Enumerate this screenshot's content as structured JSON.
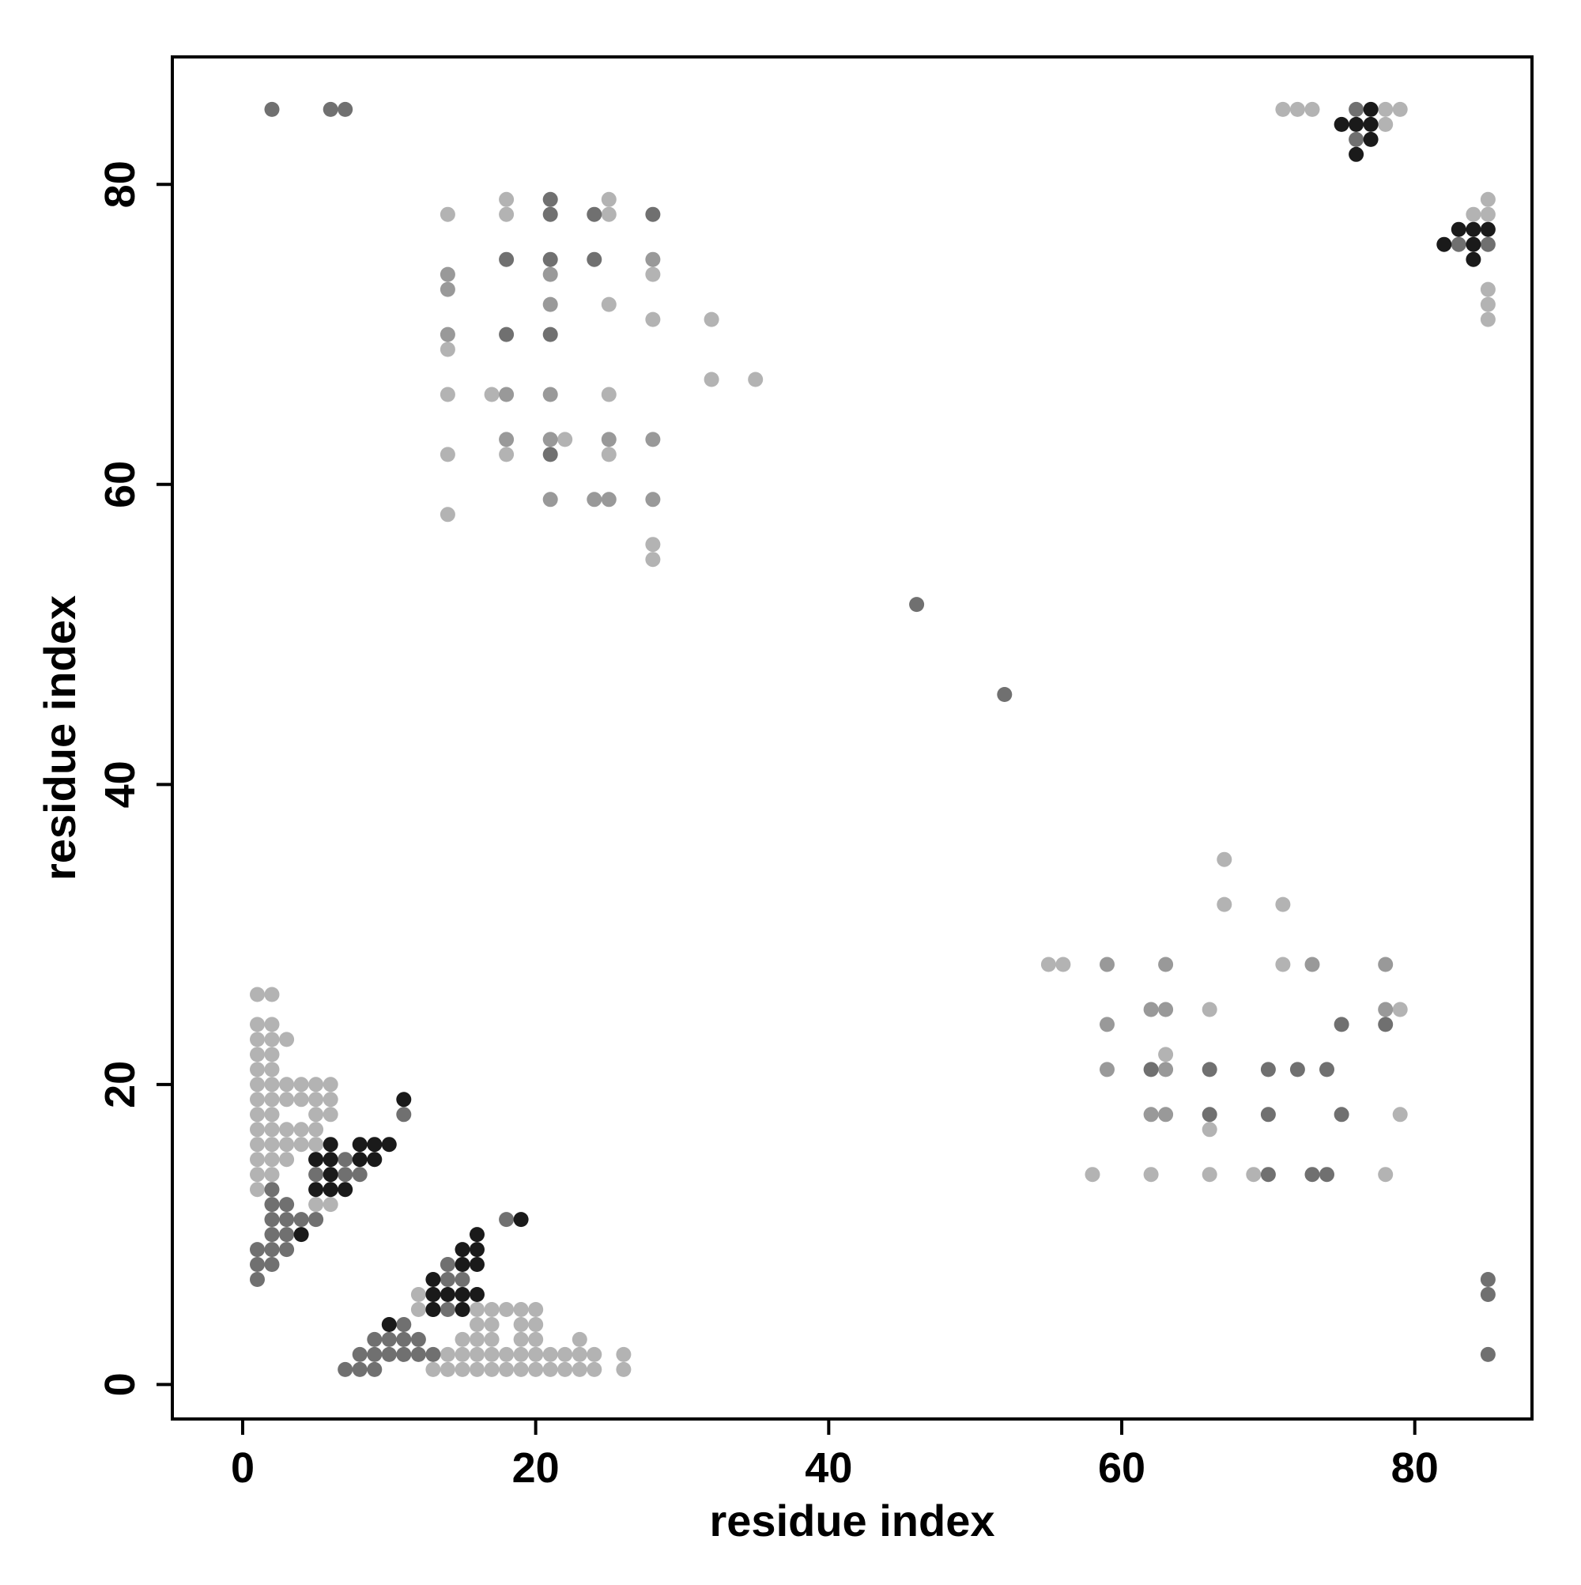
{
  "chart_data": {
    "type": "scatter",
    "title": "",
    "xlabel": "residue index",
    "ylabel": "residue index",
    "xlim": [
      -4.8,
      88
    ],
    "ylim": [
      -2.3,
      88.5
    ],
    "xticks": [
      0,
      20,
      40,
      60,
      80
    ],
    "yticks": [
      0,
      20,
      40,
      60,
      80
    ],
    "grid": false,
    "legend": "none",
    "colors": {
      "light": "#b3b3b3",
      "medium_light": "#999999",
      "medium": "#707070",
      "dark": "#1a1a1a"
    },
    "series": [
      {
        "level": "light",
        "color": "#b3b3b3",
        "points": [
          [
            1,
            26
          ],
          [
            2,
            26
          ],
          [
            1,
            24
          ],
          [
            2,
            24
          ],
          [
            1,
            23
          ],
          [
            2,
            23
          ],
          [
            3,
            23
          ],
          [
            1,
            22
          ],
          [
            2,
            22
          ],
          [
            1,
            21
          ],
          [
            2,
            21
          ],
          [
            1,
            20
          ],
          [
            2,
            20
          ],
          [
            3,
            20
          ],
          [
            4,
            20
          ],
          [
            5,
            20
          ],
          [
            6,
            20
          ],
          [
            1,
            19
          ],
          [
            2,
            19
          ],
          [
            3,
            19
          ],
          [
            4,
            19
          ],
          [
            5,
            19
          ],
          [
            6,
            19
          ],
          [
            1,
            18
          ],
          [
            2,
            18
          ],
          [
            5,
            18
          ],
          [
            6,
            18
          ],
          [
            1,
            17
          ],
          [
            2,
            17
          ],
          [
            3,
            17
          ],
          [
            4,
            17
          ],
          [
            5,
            17
          ],
          [
            1,
            16
          ],
          [
            2,
            16
          ],
          [
            3,
            16
          ],
          [
            4,
            16
          ],
          [
            5,
            16
          ],
          [
            1,
            15
          ],
          [
            2,
            15
          ],
          [
            3,
            15
          ],
          [
            1,
            14
          ],
          [
            2,
            14
          ],
          [
            1,
            13
          ],
          [
            5,
            12
          ],
          [
            6,
            12
          ],
          [
            5,
            11
          ],
          [
            12,
            6
          ],
          [
            13,
            6
          ],
          [
            12,
            5
          ],
          [
            13,
            5
          ],
          [
            16,
            5
          ],
          [
            17,
            5
          ],
          [
            18,
            5
          ],
          [
            19,
            5
          ],
          [
            20,
            5
          ],
          [
            16,
            4
          ],
          [
            17,
            4
          ],
          [
            19,
            4
          ],
          [
            20,
            4
          ],
          [
            15,
            3
          ],
          [
            16,
            3
          ],
          [
            17,
            3
          ],
          [
            19,
            3
          ],
          [
            20,
            3
          ],
          [
            23,
            3
          ],
          [
            14,
            2
          ],
          [
            15,
            2
          ],
          [
            16,
            2
          ],
          [
            17,
            2
          ],
          [
            18,
            2
          ],
          [
            19,
            2
          ],
          [
            20,
            2
          ],
          [
            21,
            2
          ],
          [
            22,
            2
          ],
          [
            23,
            2
          ],
          [
            24,
            2
          ],
          [
            26,
            2
          ],
          [
            13,
            1
          ],
          [
            14,
            1
          ],
          [
            15,
            1
          ],
          [
            16,
            1
          ],
          [
            17,
            1
          ],
          [
            18,
            1
          ],
          [
            19,
            1
          ],
          [
            20,
            1
          ],
          [
            21,
            1
          ],
          [
            22,
            1
          ],
          [
            23,
            1
          ],
          [
            24,
            1
          ],
          [
            26,
            1
          ],
          [
            14,
            78
          ],
          [
            18,
            79
          ],
          [
            18,
            78
          ],
          [
            25,
            79
          ],
          [
            25,
            78
          ],
          [
            25,
            72
          ],
          [
            28,
            74
          ],
          [
            28,
            71
          ],
          [
            32,
            71
          ],
          [
            32,
            67
          ],
          [
            35,
            67
          ],
          [
            14,
            69
          ],
          [
            14,
            66
          ],
          [
            17,
            66
          ],
          [
            25,
            66
          ],
          [
            22,
            63
          ],
          [
            14,
            62
          ],
          [
            18,
            62
          ],
          [
            25,
            62
          ],
          [
            14,
            58
          ],
          [
            28,
            56
          ],
          [
            28,
            55
          ],
          [
            71,
            85
          ],
          [
            72,
            85
          ],
          [
            73,
            85
          ],
          [
            78,
            85
          ],
          [
            79,
            85
          ],
          [
            78,
            84
          ],
          [
            85,
            79
          ],
          [
            84,
            78
          ],
          [
            85,
            78
          ],
          [
            85,
            73
          ],
          [
            85,
            72
          ],
          [
            85,
            71
          ],
          [
            67,
            35
          ],
          [
            67,
            32
          ],
          [
            71,
            32
          ],
          [
            55,
            28
          ],
          [
            56,
            28
          ],
          [
            71,
            28
          ],
          [
            66,
            25
          ],
          [
            79,
            25
          ],
          [
            63,
            22
          ],
          [
            66,
            17
          ],
          [
            79,
            18
          ],
          [
            58,
            14
          ],
          [
            62,
            14
          ],
          [
            66,
            14
          ],
          [
            69,
            14
          ],
          [
            78,
            14
          ]
        ]
      },
      {
        "level": "medium_light",
        "color": "#999999",
        "points": [
          [
            59,
            28
          ],
          [
            63,
            28
          ],
          [
            73,
            28
          ],
          [
            78,
            28
          ],
          [
            62,
            25
          ],
          [
            63,
            25
          ],
          [
            78,
            25
          ],
          [
            59,
            24
          ],
          [
            59,
            21
          ],
          [
            63,
            21
          ],
          [
            62,
            18
          ],
          [
            63,
            18
          ],
          [
            18,
            63
          ],
          [
            21,
            63
          ],
          [
            25,
            63
          ],
          [
            28,
            63
          ],
          [
            28,
            59
          ],
          [
            21,
            59
          ],
          [
            24,
            59
          ],
          [
            25,
            59
          ],
          [
            14,
            70
          ],
          [
            18,
            66
          ],
          [
            21,
            66
          ],
          [
            14,
            74
          ],
          [
            14,
            73
          ],
          [
            21,
            74
          ],
          [
            21,
            72
          ],
          [
            28,
            75
          ]
        ]
      },
      {
        "level": "medium",
        "color": "#707070",
        "points": [
          [
            2,
            85
          ],
          [
            6,
            85
          ],
          [
            7,
            85
          ],
          [
            76,
            85
          ],
          [
            76,
            83
          ],
          [
            83,
            76
          ],
          [
            85,
            76
          ],
          [
            21,
            79
          ],
          [
            21,
            78
          ],
          [
            24,
            78
          ],
          [
            28,
            78
          ],
          [
            18,
            75
          ],
          [
            21,
            75
          ],
          [
            24,
            75
          ],
          [
            18,
            70
          ],
          [
            21,
            70
          ],
          [
            21,
            62
          ],
          [
            46,
            52
          ],
          [
            52,
            46
          ],
          [
            75,
            24
          ],
          [
            78,
            24
          ],
          [
            62,
            21
          ],
          [
            66,
            21
          ],
          [
            70,
            21
          ],
          [
            72,
            21
          ],
          [
            74,
            21
          ],
          [
            66,
            18
          ],
          [
            70,
            18
          ],
          [
            75,
            18
          ],
          [
            73,
            14
          ],
          [
            74,
            14
          ],
          [
            70,
            14
          ],
          [
            85,
            7
          ],
          [
            85,
            6
          ],
          [
            85,
            2
          ],
          [
            11,
            18
          ],
          [
            18,
            11
          ],
          [
            2,
            13
          ],
          [
            2,
            12
          ],
          [
            3,
            12
          ],
          [
            2,
            11
          ],
          [
            3,
            11
          ],
          [
            4,
            11
          ],
          [
            5,
            11
          ],
          [
            2,
            10
          ],
          [
            3,
            10
          ],
          [
            1,
            9
          ],
          [
            2,
            9
          ],
          [
            3,
            9
          ],
          [
            1,
            8
          ],
          [
            2,
            8
          ],
          [
            1,
            7
          ],
          [
            5,
            15
          ],
          [
            5,
            14
          ],
          [
            6,
            14
          ],
          [
            7,
            14
          ],
          [
            8,
            14
          ],
          [
            7,
            15
          ],
          [
            8,
            2
          ],
          [
            9,
            2
          ],
          [
            10,
            2
          ],
          [
            11,
            2
          ],
          [
            12,
            2
          ],
          [
            13,
            2
          ],
          [
            9,
            3
          ],
          [
            10,
            3
          ],
          [
            11,
            3
          ],
          [
            12,
            3
          ],
          [
            11,
            4
          ],
          [
            7,
            1
          ],
          [
            8,
            1
          ],
          [
            9,
            1
          ],
          [
            14,
            8
          ],
          [
            14,
            7
          ],
          [
            15,
            7
          ],
          [
            13,
            6
          ],
          [
            13,
            5
          ],
          [
            14,
            5
          ]
        ]
      },
      {
        "level": "dark",
        "color": "#1a1a1a",
        "points": [
          [
            11,
            19
          ],
          [
            6,
            16
          ],
          [
            8,
            16
          ],
          [
            9,
            16
          ],
          [
            10,
            16
          ],
          [
            5,
            15
          ],
          [
            6,
            15
          ],
          [
            8,
            15
          ],
          [
            9,
            15
          ],
          [
            6,
            14
          ],
          [
            5,
            13
          ],
          [
            6,
            13
          ],
          [
            7,
            13
          ],
          [
            4,
            10
          ],
          [
            16,
            10
          ],
          [
            15,
            9
          ],
          [
            16,
            9
          ],
          [
            15,
            8
          ],
          [
            16,
            8
          ],
          [
            13,
            7
          ],
          [
            13,
            6
          ],
          [
            14,
            6
          ],
          [
            15,
            6
          ],
          [
            16,
            6
          ],
          [
            13,
            5
          ],
          [
            15,
            5
          ],
          [
            10,
            4
          ],
          [
            19,
            11
          ],
          [
            75,
            84
          ],
          [
            76,
            84
          ],
          [
            77,
            84
          ],
          [
            77,
            85
          ],
          [
            77,
            83
          ],
          [
            76,
            82
          ],
          [
            82,
            76
          ],
          [
            83,
            77
          ],
          [
            84,
            77
          ],
          [
            85,
            77
          ],
          [
            84,
            76
          ],
          [
            84,
            75
          ]
        ]
      }
    ]
  }
}
